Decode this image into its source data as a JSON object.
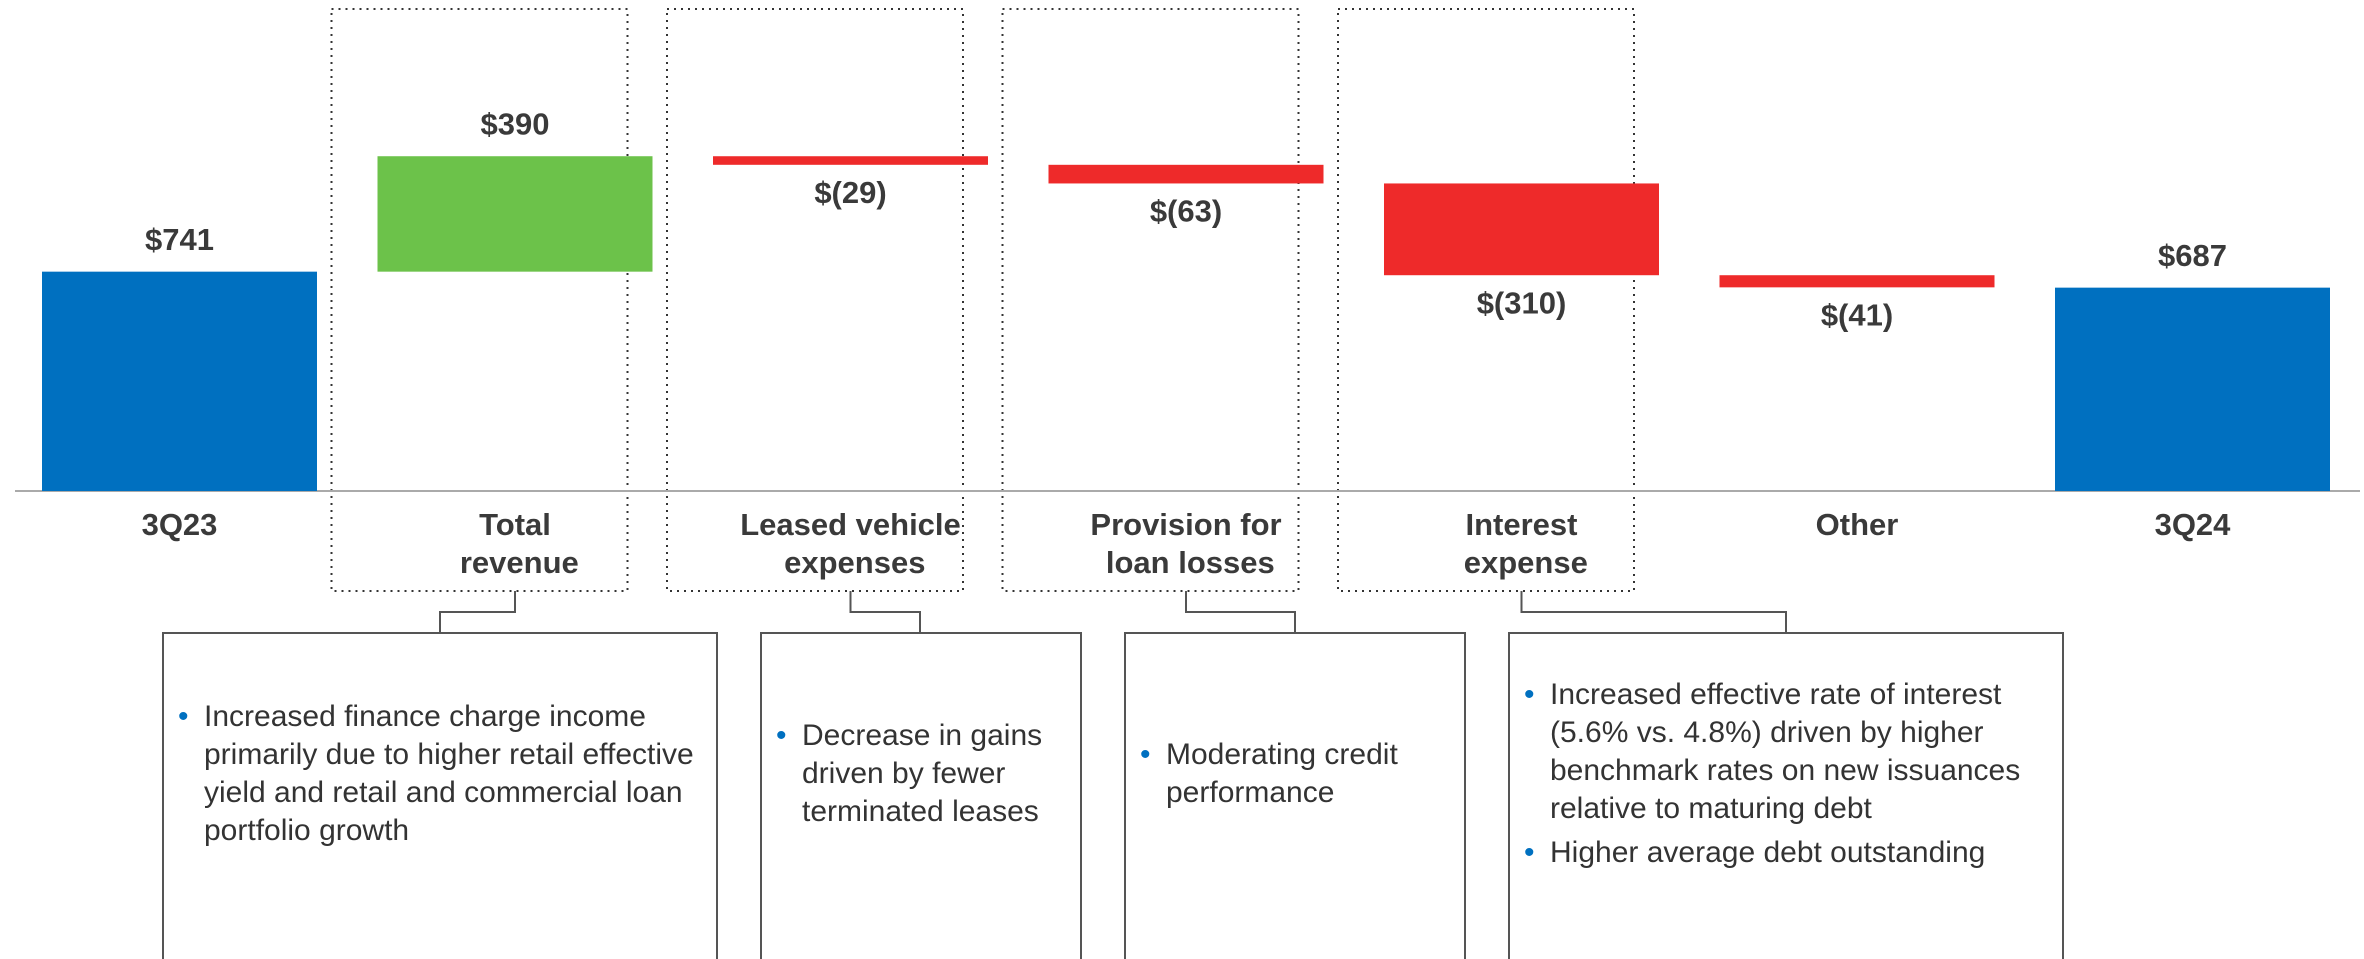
{
  "chart_data": {
    "type": "waterfall",
    "categories": [
      "3Q23",
      "Total revenue",
      "Leased vehicle expenses",
      "Provision for loan losses",
      "Interest expense",
      "Other",
      "3Q24"
    ],
    "values": [
      741,
      390,
      -29,
      -63,
      -310,
      -41,
      687
    ],
    "value_labels": [
      "$741",
      "$390",
      "$(29)",
      "$(63)",
      "$(310)",
      "$(41)",
      "$687"
    ],
    "colors": [
      "#0070c0",
      "#6cc24a",
      "#ee2a2a",
      "#ee2a2a",
      "#ee2a2a",
      "#ee2a2a",
      "#0070c0"
    ]
  },
  "notes": [
    {
      "bullets": [
        "Increased finance charge income primarily due to higher retail effective yield and retail and commercial loan portfolio growth"
      ]
    },
    {
      "bullets": [
        "Decrease in gains driven by fewer terminated leases"
      ]
    },
    {
      "bullets": [
        "Moderating credit performance"
      ]
    },
    {
      "bullets": [
        "Increased effective rate of interest (5.6% vs. 4.8%) driven by higher benchmark rates on new issuances relative to maturing debt",
        "Higher average debt outstanding"
      ]
    }
  ]
}
